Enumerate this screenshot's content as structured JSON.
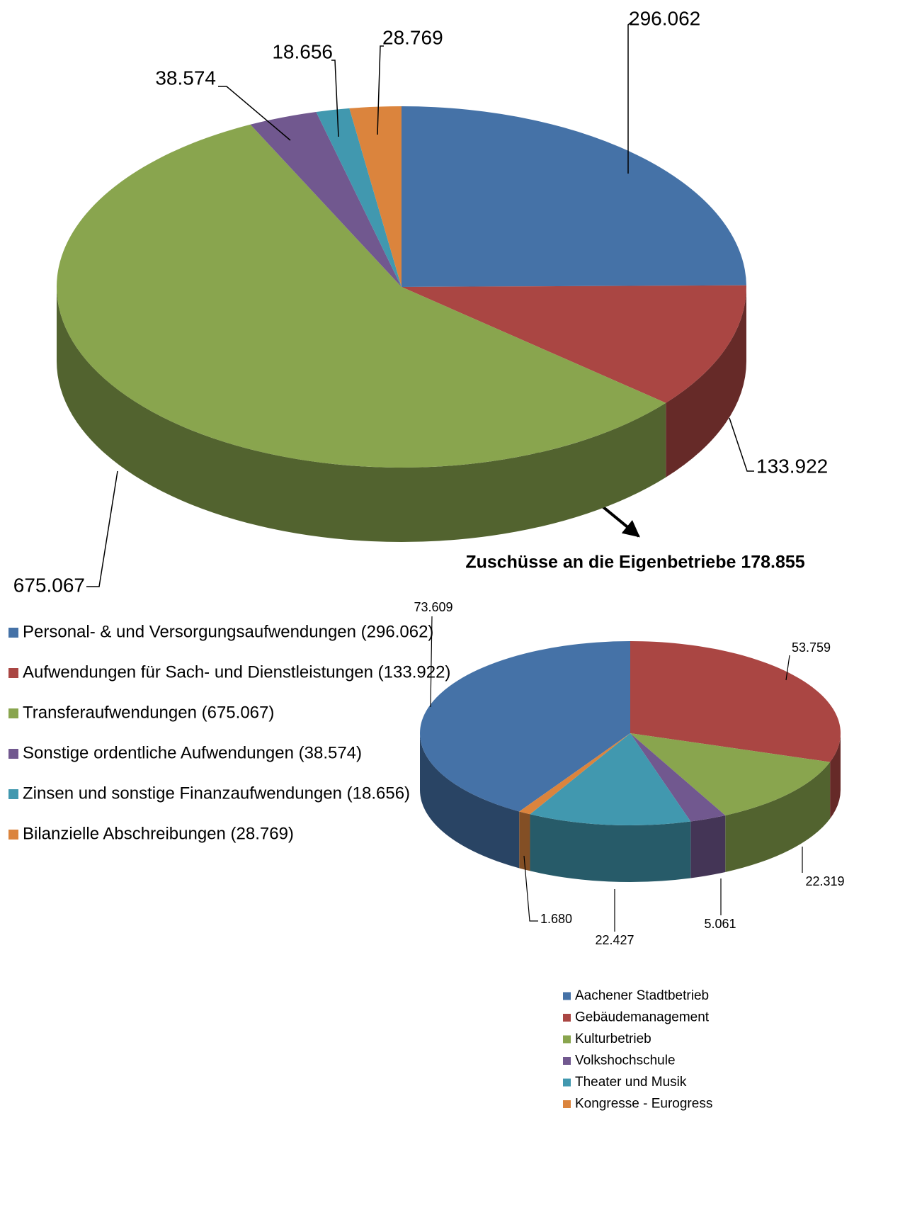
{
  "chart_data": [
    {
      "type": "pie",
      "categories": [
        "Personal- & und Versorgungsaufwendungen (296.062)",
        "Aufwendungen für Sach- und Dienstleistungen (133.922)",
        "Transferaufwendungen (675.067)",
        "Sonstige ordentliche Aufwendungen (38.574)",
        "Zinsen und sonstige Finanzaufwendungen (18.656)",
        "Bilanzielle Abschreibungen (28.769)"
      ],
      "values": [
        296062,
        133922,
        675067,
        38574,
        18656,
        28769
      ],
      "value_labels": [
        "296.062",
        "133.922",
        "675.067",
        "38.574",
        "18.656",
        "28.769"
      ],
      "colors": [
        "#4572a7",
        "#aa4643",
        "#89a54e",
        "#71588f",
        "#4198af",
        "#db843d"
      ]
    },
    {
      "type": "pie",
      "title": "Zuschüsse an die Eigenbetriebe 178.855",
      "categories": [
        "Aachener Stadtbetrieb",
        "Gebäudemanagement",
        "Kulturbetrieb",
        "Volkshochschule",
        "Theater und Musik",
        "Kongresse - Eurogress"
      ],
      "values": [
        73609,
        53759,
        22319,
        5061,
        22427,
        1680
      ],
      "value_labels": [
        "73.609",
        "53.759",
        "22.319",
        "5.061",
        "22.427",
        "1.680"
      ],
      "colors": [
        "#4572a7",
        "#aa4643",
        "#89a54e",
        "#71588f",
        "#4198af",
        "#db843d"
      ]
    }
  ]
}
